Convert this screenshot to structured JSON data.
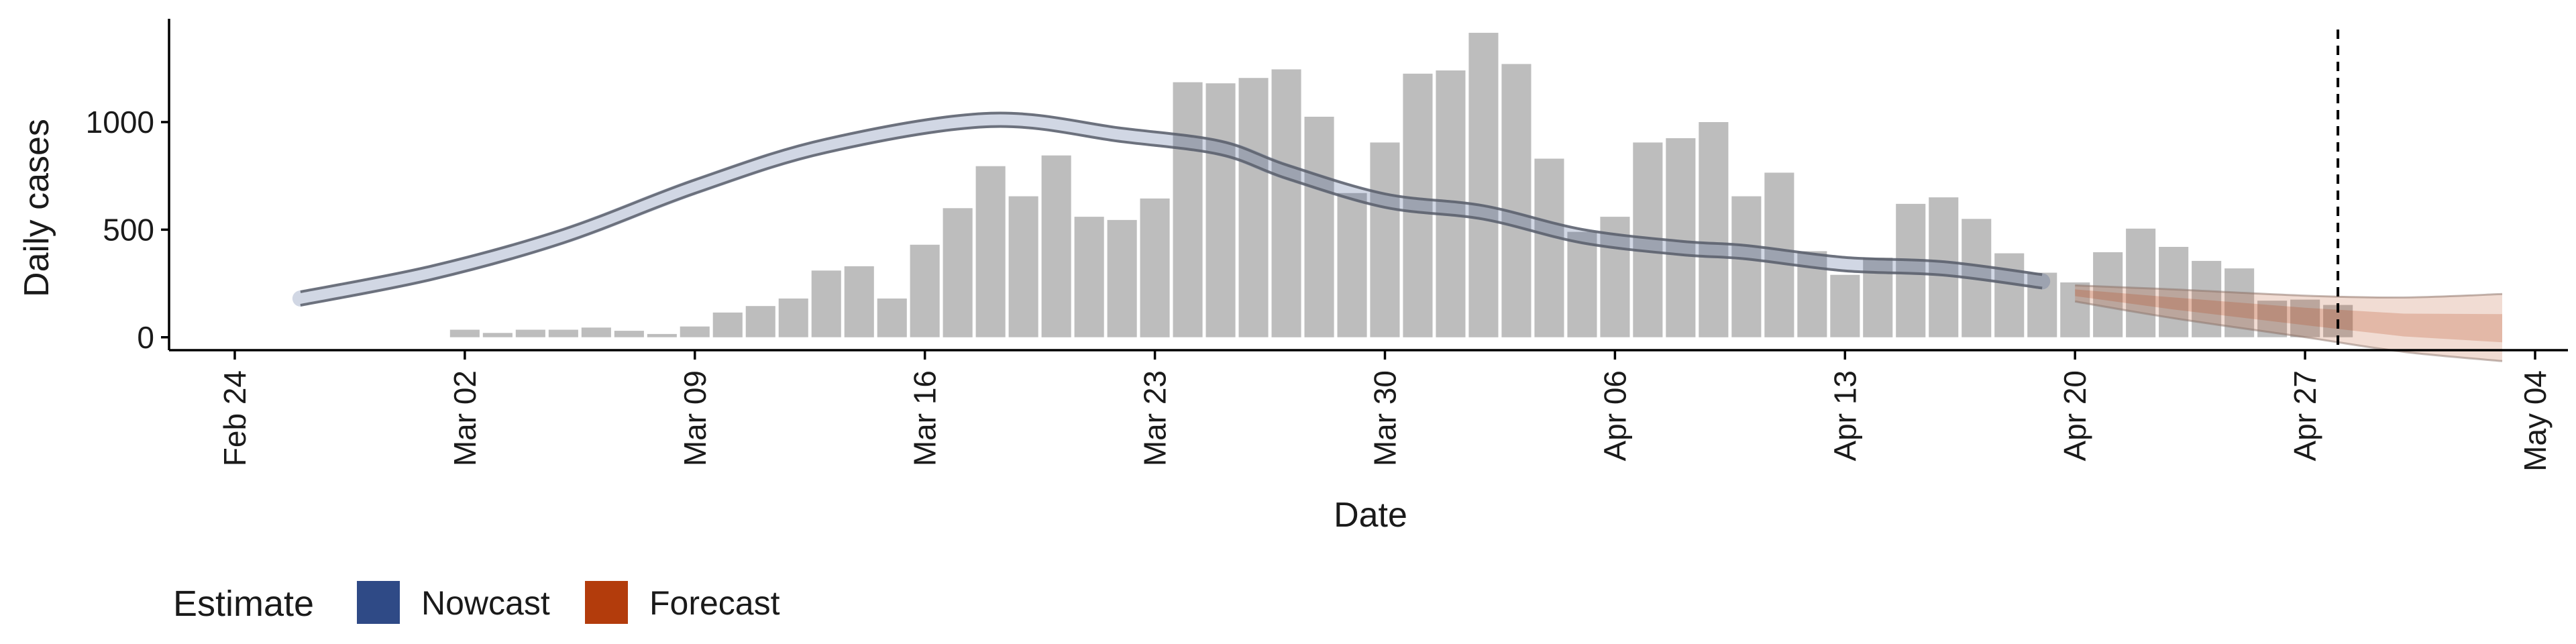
{
  "chart_data": {
    "type": "bar",
    "xlabel": "Date",
    "ylabel": "Daily cases",
    "x_range": [
      "2020-02-22",
      "2020-05-05"
    ],
    "ylim": [
      -60,
      1480
    ],
    "y_ticks": [
      0,
      500,
      1000
    ],
    "x_ticks": [
      {
        "date": "2020-02-24",
        "label": "Feb 24"
      },
      {
        "date": "2020-03-02",
        "label": "Mar 02"
      },
      {
        "date": "2020-03-09",
        "label": "Mar 09"
      },
      {
        "date": "2020-03-16",
        "label": "Mar 16"
      },
      {
        "date": "2020-03-23",
        "label": "Mar 23"
      },
      {
        "date": "2020-03-30",
        "label": "Mar 30"
      },
      {
        "date": "2020-04-06",
        "label": "Apr 06"
      },
      {
        "date": "2020-04-13",
        "label": "Apr 13"
      },
      {
        "date": "2020-04-20",
        "label": "Apr 20"
      },
      {
        "date": "2020-04-27",
        "label": "Apr 27"
      },
      {
        "date": "2020-05-04",
        "label": "May 04"
      }
    ],
    "grid": false,
    "legend_position": "bottom-left",
    "bars": {
      "start_date": "2020-03-02",
      "color": "#bdbdbd",
      "values": [
        35,
        20,
        35,
        35,
        45,
        30,
        15,
        50,
        115,
        145,
        180,
        310,
        330,
        180,
        430,
        600,
        795,
        655,
        845,
        560,
        545,
        645,
        1185,
        1180,
        1205,
        1245,
        1025,
        670,
        905,
        1225,
        1240,
        1415,
        1270,
        830,
        490,
        560,
        905,
        925,
        1000,
        655,
        765,
        400,
        290,
        370,
        620,
        650,
        550,
        390,
        300,
        255,
        395,
        505,
        420,
        355,
        320,
        170,
        175,
        150
      ]
    },
    "series": [
      {
        "name": "Nowcast",
        "color": "#2f4a86",
        "points": [
          [
            "2020-02-26",
            180
          ],
          [
            "2020-03-01",
            300
          ],
          [
            "2020-03-05",
            470
          ],
          [
            "2020-03-09",
            700
          ],
          [
            "2020-03-13",
            890
          ],
          [
            "2020-03-18",
            1010
          ],
          [
            "2020-03-22",
            940
          ],
          [
            "2020-03-25",
            880
          ],
          [
            "2020-03-27",
            770
          ],
          [
            "2020-03-30",
            635
          ],
          [
            "2020-04-02",
            580
          ],
          [
            "2020-04-05",
            470
          ],
          [
            "2020-04-08",
            415
          ],
          [
            "2020-04-10",
            395
          ],
          [
            "2020-04-13",
            340
          ],
          [
            "2020-04-16",
            320
          ],
          [
            "2020-04-19",
            260
          ]
        ]
      },
      {
        "name": "Forecast",
        "color": "#b33c0c",
        "points": [
          [
            "2020-04-20",
            210
          ],
          [
            "2020-04-23",
            160
          ],
          [
            "2020-04-27",
            100
          ],
          [
            "2020-04-30",
            60
          ],
          [
            "2020-05-03",
            45
          ]
        ]
      }
    ],
    "vline_date": "2020-04-28",
    "legend": {
      "title": "Estimate",
      "items": [
        {
          "label": "Nowcast",
          "color": "#2f4a86"
        },
        {
          "label": "Forecast",
          "color": "#b33c0c"
        }
      ]
    }
  }
}
